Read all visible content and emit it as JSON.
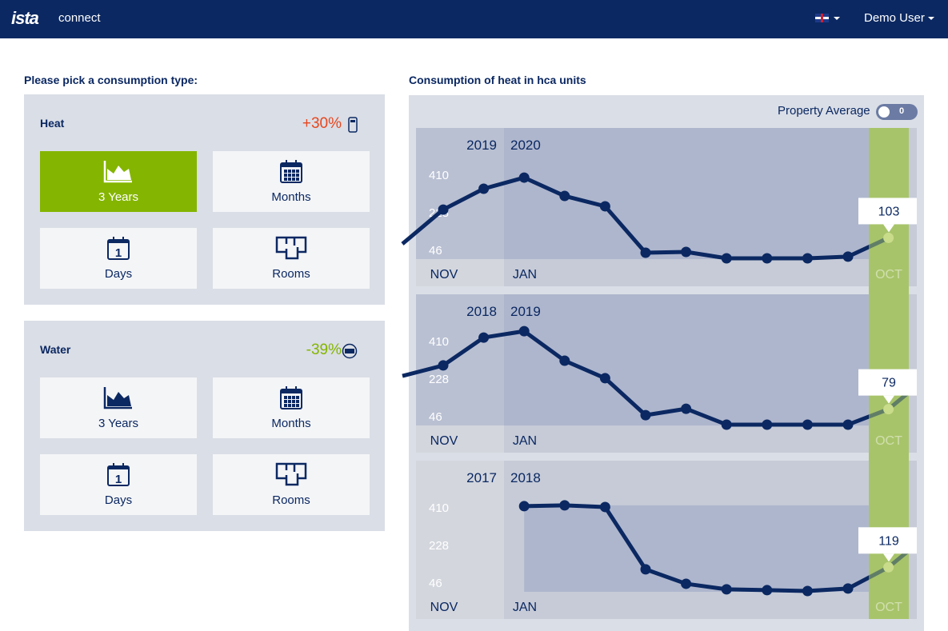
{
  "header": {
    "logo": "ista",
    "app": "connect",
    "language": "English",
    "user": "Demo User"
  },
  "left": {
    "title": "Please pick a consumption type:",
    "cards": [
      {
        "name": "Heat",
        "change": "+30%",
        "change_color": "#e8461e",
        "device_icon": "heat-cost-allocator-icon",
        "buttons": [
          {
            "label": "3 Years",
            "icon": "area-chart-icon",
            "active": true
          },
          {
            "label": "Months",
            "icon": "calendar-icon"
          },
          {
            "label": "Days",
            "icon": "day-calendar-icon",
            "day": "1"
          },
          {
            "label": "Rooms",
            "icon": "floorplan-icon"
          }
        ]
      },
      {
        "name": "Water",
        "change": "-39%",
        "change_color": "#84b500",
        "device_icon": "water-meter-icon",
        "buttons": [
          {
            "label": "3 Years",
            "icon": "area-chart-icon",
            "active": false
          },
          {
            "label": "Months",
            "icon": "calendar-icon"
          },
          {
            "label": "Days",
            "icon": "day-calendar-icon",
            "day": "1"
          },
          {
            "label": "Rooms",
            "icon": "floorplan-icon"
          }
        ]
      }
    ]
  },
  "right": {
    "title": "Consumption of heat in hca units",
    "property_average_label": "Property Average",
    "toggle_value": "0"
  },
  "chart_data": [
    {
      "type": "line",
      "years": [
        "2019",
        "2020"
      ],
      "y_ticks": [
        410,
        228,
        46
      ],
      "x_labels": [
        "NOV",
        "JAN",
        "OCT"
      ],
      "prev": 74,
      "values": [
        240,
        341,
        395,
        306,
        256,
        31,
        35,
        4,
        4,
        4,
        12,
        103
      ],
      "highlight": "103",
      "next": null
    },
    {
      "type": "line",
      "years": [
        "2018",
        "2019"
      ],
      "y_ticks": [
        410,
        228,
        46
      ],
      "x_labels": [
        "NOV",
        "JAN",
        "OCT"
      ],
      "prev": 240,
      "values": [
        291,
        426,
        457,
        314,
        229,
        50,
        81,
        4,
        4,
        4,
        4,
        79
      ],
      "highlight": "79",
      "next": 160
    },
    {
      "type": "line",
      "years": [
        "2017",
        "2018"
      ],
      "y_ticks": [
        410,
        228,
        46
      ],
      "x_labels": [
        "NOV",
        "JAN",
        "OCT"
      ],
      "prev": null,
      "values": [
        null,
        null,
        415,
        419,
        411,
        109,
        39,
        12,
        8,
        4,
        16,
        119
      ],
      "highlight": "119",
      "next": 200
    }
  ]
}
